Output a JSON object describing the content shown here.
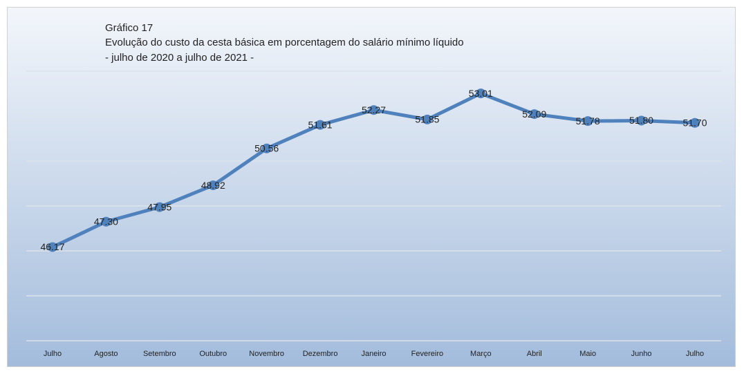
{
  "chart_data": {
    "type": "line",
    "title": "Gráfico 17",
    "subtitle": [
      "Evolução do custo da cesta básica em porcentagem do salário mínimo líquido",
      "- julho de 2020 a julho de 2021 -"
    ],
    "categories": [
      "Julho",
      "Agosto",
      "Setembro",
      "Outubro",
      "Novembro",
      "Dezembro",
      "Janeiro",
      "Fevereiro",
      "Março",
      "Abril",
      "Maio",
      "Junho",
      "Julho"
    ],
    "series": [
      {
        "name": "Custo da cesta básica",
        "color": "#4f81bd",
        "values": [
          46.17,
          47.3,
          47.95,
          48.92,
          50.56,
          51.61,
          52.27,
          51.85,
          53.01,
          52.09,
          51.78,
          51.8,
          51.7
        ],
        "value_labels": [
          "46.17",
          "47.30",
          "47.95",
          "48.92",
          "50.56",
          "51.61",
          "52.27",
          "51.85",
          "53.01",
          "52.09",
          "51.78",
          "51.80",
          "51.70"
        ]
      }
    ],
    "ylim": [
      42,
      54
    ],
    "yticks": [
      42,
      44,
      46,
      48,
      50,
      52,
      54
    ],
    "grid": true
  }
}
